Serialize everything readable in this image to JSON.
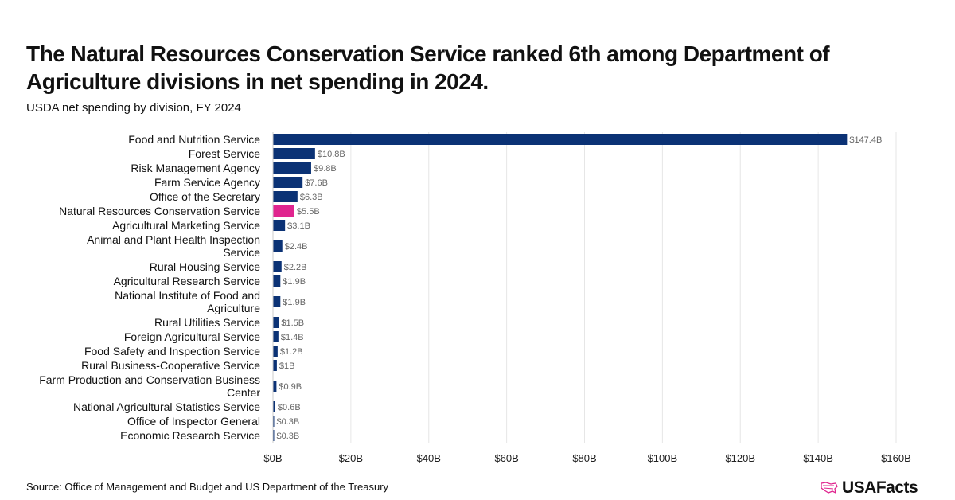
{
  "title": "The Natural Resources Conservation Service ranked 6th among Department of Agriculture divisions in net spending in 2024.",
  "subtitle": "USDA net spending by division, FY 2024",
  "source": "Source: Office of Management and Budget and US Department of the Treasury",
  "logo_text": "USAFacts",
  "colors": {
    "bar": "#0b3275",
    "highlight": "#e0258f",
    "grid": "#e6e6e6",
    "label": "#666666"
  },
  "chart_data": {
    "type": "bar",
    "orientation": "horizontal",
    "title": "The Natural Resources Conservation Service ranked 6th among Department of Agriculture divisions in net spending in 2024.",
    "subtitle": "USDA net spending by division, FY 2024",
    "categories": [
      "Food and Nutrition Service",
      "Forest Service",
      "Risk Management Agency",
      "Farm Service Agency",
      "Office of the Secretary",
      "Natural Resources Conservation Service",
      "Agricultural Marketing Service",
      "Animal and Plant Health Inspection Service",
      "Rural Housing Service",
      "Agricultural Research Service",
      "National Institute of Food and Agriculture",
      "Rural Utilities Service",
      "Foreign Agricultural Service",
      "Food Safety and Inspection Service",
      "Rural Business-Cooperative Service",
      "Farm Production and Conservation Business Center",
      "National Agricultural Statistics Service",
      "Office of Inspector General",
      "Economic Research Service"
    ],
    "values": [
      147.4,
      10.8,
      9.8,
      7.6,
      6.3,
      5.5,
      3.1,
      2.4,
      2.2,
      1.9,
      1.9,
      1.5,
      1.4,
      1.2,
      1.0,
      0.9,
      0.6,
      0.3,
      0.3
    ],
    "data_labels": [
      "$147.4B",
      "$10.8B",
      "$9.8B",
      "$7.6B",
      "$6.3B",
      "$5.5B",
      "$3.1B",
      "$2.4B",
      "$2.2B",
      "$1.9B",
      "$1.9B",
      "$1.5B",
      "$1.4B",
      "$1.2B",
      "$1B",
      "$0.9B",
      "$0.6B",
      "$0.3B",
      "$0.3B"
    ],
    "highlight": "Natural Resources Conservation Service",
    "xlim": [
      0,
      160
    ],
    "xticks": [
      0,
      20,
      40,
      60,
      80,
      100,
      120,
      140,
      160
    ],
    "xtick_labels": [
      "$0B",
      "$20B",
      "$40B",
      "$60B",
      "$80B",
      "$100B",
      "$120B",
      "$140B",
      "$160B"
    ],
    "grid": true,
    "unit": "billions USD"
  }
}
